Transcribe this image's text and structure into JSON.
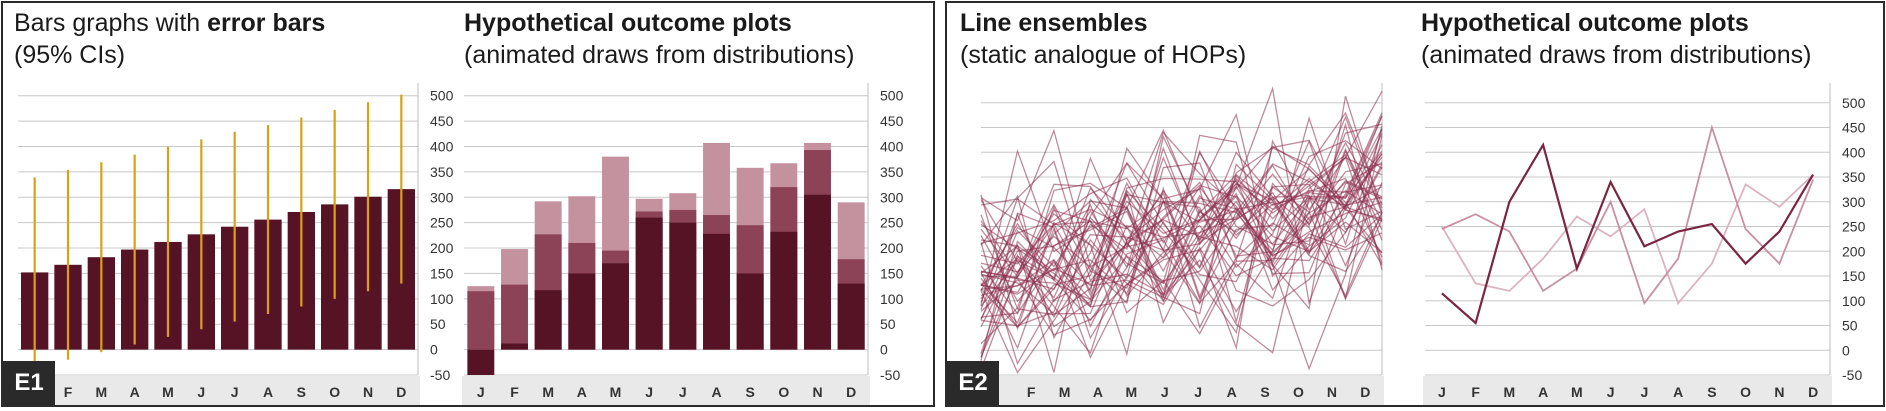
{
  "panels": {
    "e1": {
      "tag": "E1"
    },
    "e2": {
      "tag": "E2"
    }
  },
  "chart_data": [
    {
      "type": "bar",
      "title_prefix": "Bars graphs with ",
      "title_bold": "error bars",
      "subtitle": "(95% CIs)",
      "categories": [
        "J",
        "F",
        "M",
        "A",
        "M",
        "J",
        "J",
        "A",
        "S",
        "O",
        "N",
        "D"
      ],
      "x_tick_labels": [
        "",
        "F",
        "M",
        "A",
        "M",
        "J",
        "J",
        "A",
        "S",
        "O",
        "N",
        "D"
      ],
      "values": [
        152,
        167,
        182,
        197,
        212,
        227,
        242,
        256,
        271,
        286,
        301,
        316
      ],
      "ci_low": [
        -35,
        -20,
        -5,
        10,
        25,
        40,
        55,
        70,
        85,
        100,
        115,
        130
      ],
      "ci_high": [
        339,
        354,
        369,
        384,
        399,
        414,
        429,
        442,
        457,
        472,
        487,
        502
      ],
      "ylim": [
        -50,
        525
      ],
      "yticks": [
        -50,
        0,
        50,
        100,
        150,
        200,
        250,
        300,
        350,
        400,
        450,
        500
      ],
      "grid": true,
      "colors": {
        "bar": "#561326",
        "error": "#daa017",
        "grid": "#c8c8c8",
        "axis_band": "#e9e9e9"
      }
    },
    {
      "type": "bar",
      "title_bold": "Hypothetical outcome plots",
      "subtitle": "(animated draws from distributions)",
      "categories": [
        "J",
        "F",
        "M",
        "A",
        "M",
        "J",
        "J",
        "A",
        "S",
        "O",
        "N",
        "D"
      ],
      "x_tick_labels": [
        "J",
        "F",
        "M",
        "A",
        "M",
        "J",
        "J",
        "A",
        "S",
        "O",
        "N",
        "D"
      ],
      "series": [
        {
          "values": [
            125,
            198,
            292,
            302,
            380,
            297,
            308,
            407,
            358,
            367,
            407,
            290
          ]
        },
        {
          "values": [
            115,
            128,
            227,
            210,
            195,
            272,
            275,
            265,
            245,
            320,
            393,
            178
          ]
        },
        {
          "values": [
            -50,
            12,
            117,
            150,
            170,
            260,
            250,
            228,
            150,
            232,
            305,
            130
          ]
        }
      ],
      "ylim": [
        -50,
        525
      ],
      "yticks": [
        -50,
        0,
        50,
        100,
        150,
        200,
        250,
        300,
        350,
        400,
        450,
        500
      ],
      "grid": true,
      "colors": {
        "layers": [
          "#c4929f",
          "#8c4358",
          "#561326"
        ],
        "grid": "#c8c8c8",
        "axis_band": "#e9e9e9"
      }
    },
    {
      "type": "line",
      "title_bold": "Line ensembles",
      "subtitle": "(static analogue of HOPs)",
      "categories": [
        "J",
        "F",
        "M",
        "A",
        "M",
        "J",
        "J",
        "A",
        "S",
        "O",
        "N",
        "D"
      ],
      "x_tick_labels": [
        "",
        "F",
        "M",
        "A",
        "M",
        "J",
        "J",
        "A",
        "S",
        "O",
        "N",
        "D"
      ],
      "series_count": 50,
      "mean": [
        150,
        165,
        180,
        195,
        210,
        225,
        240,
        255,
        270,
        285,
        300,
        315
      ],
      "spread": 95,
      "ylim": [
        -50,
        540
      ],
      "yticks": [
        -50,
        0,
        50,
        100,
        150,
        200,
        250,
        300,
        350,
        400,
        450,
        500
      ],
      "grid": true,
      "colors": {
        "line": "#8a2b4c",
        "grid": "#c8c8c8",
        "axis_band": "#e9e9e9"
      }
    },
    {
      "type": "line",
      "title_bold": "Hypothetical outcome plots",
      "subtitle": "(animated draws from distributions)",
      "categories": [
        "J",
        "F",
        "M",
        "A",
        "M",
        "J",
        "J",
        "A",
        "S",
        "O",
        "N",
        "D"
      ],
      "x_tick_labels": [
        "J",
        "F",
        "M",
        "A",
        "M",
        "J",
        "J",
        "A",
        "S",
        "O",
        "N",
        "D"
      ],
      "series": [
        {
          "values": [
            250,
            135,
            120,
            185,
            270,
            230,
            285,
            95,
            175,
            335,
            290,
            355
          ]
        },
        {
          "values": [
            245,
            275,
            240,
            120,
            165,
            300,
            95,
            185,
            450,
            245,
            175,
            345
          ]
        },
        {
          "values": [
            115,
            55,
            300,
            415,
            165,
            340,
            210,
            240,
            255,
            175,
            240,
            355
          ]
        }
      ],
      "ylim": [
        -50,
        540
      ],
      "yticks": [
        -50,
        0,
        50,
        100,
        150,
        200,
        250,
        300,
        350,
        400,
        450,
        500
      ],
      "grid": true,
      "colors": {
        "lines": [
          "#dcb4c0",
          "#c890a3",
          "#7a2640"
        ],
        "grid": "#c8c8c8",
        "axis_band": "#e9e9e9"
      }
    }
  ]
}
